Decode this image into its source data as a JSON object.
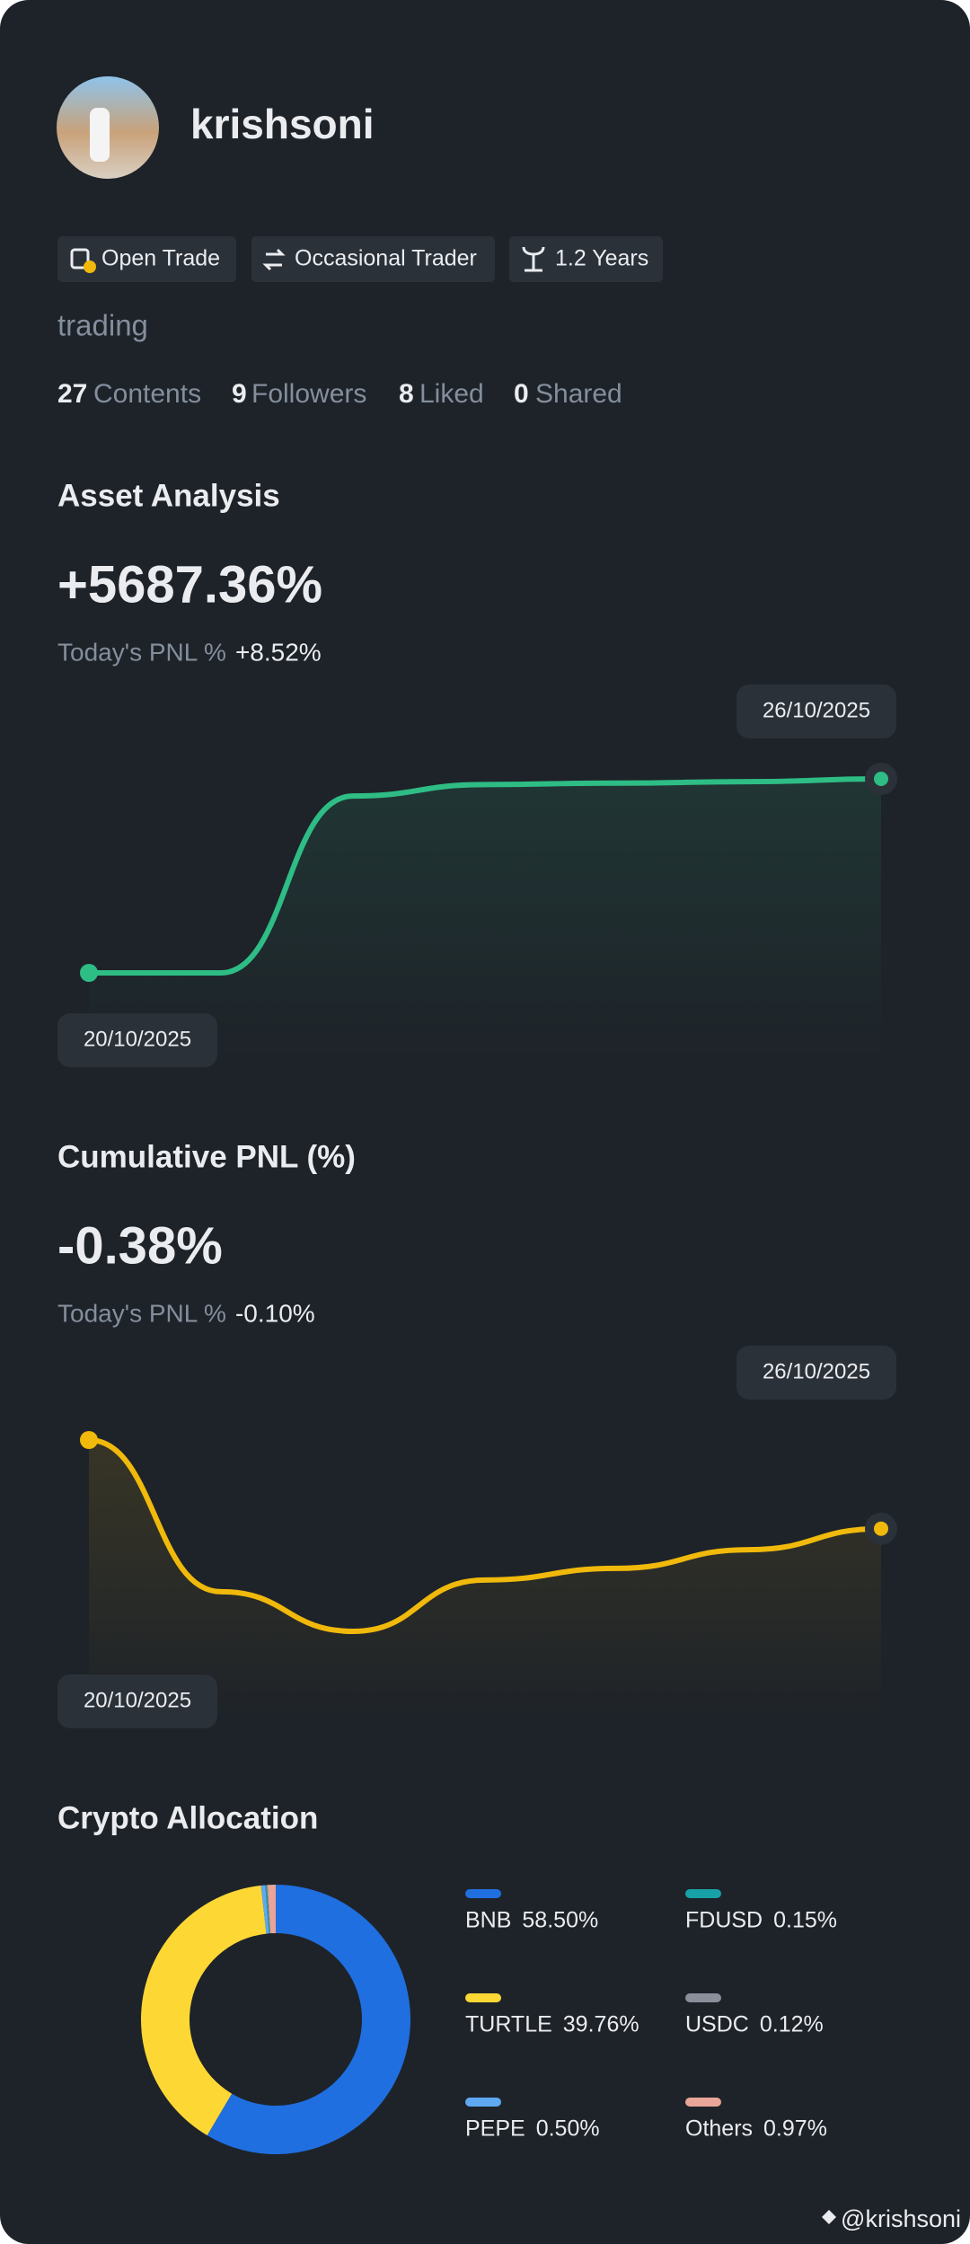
{
  "profile": {
    "username": "krishsoni",
    "tags": [
      "Open Trade",
      "Occasional Trader",
      "1.2 Years"
    ],
    "bio": "trading",
    "stats": [
      {
        "value": 27,
        "label": "Contents"
      },
      {
        "value": 9,
        "label": "Followers"
      },
      {
        "value": 8,
        "label": "Liked"
      },
      {
        "value": 0,
        "label": "Shared"
      }
    ]
  },
  "chart_data": [
    {
      "type": "line",
      "title": "Asset Analysis",
      "headline": "+5687.36%",
      "pnl_label": "Today's PNL %",
      "pnl_value": "+8.52%",
      "categories": [
        "20/10/2025",
        null,
        null,
        null,
        null,
        null,
        "26/10/2025"
      ],
      "series": [
        {
          "color": "#2ebd85",
          "values": [
            0,
            0,
            5185,
            5520,
            5562,
            5604,
            5687.36
          ]
        }
      ]
    },
    {
      "type": "line",
      "title": "Cumulative PNL (%)",
      "headline": "-0.38%",
      "pnl_label": "Today's PNL %",
      "pnl_value": "-0.10%",
      "categories": [
        "20/10/2025",
        null,
        null,
        null,
        null,
        null,
        "26/10/2025"
      ],
      "series": [
        {
          "color": "#f0b90b",
          "values": [
            0,
            -0.65,
            -0.82,
            -0.6,
            -0.55,
            -0.47,
            -0.38
          ]
        }
      ]
    },
    {
      "type": "pie",
      "title": "Crypto Allocation",
      "categories": [
        "BNB",
        "TURTLE",
        "PEPE",
        "FDUSD",
        "USDC",
        "Others"
      ],
      "values": [
        58.5,
        39.76,
        0.5,
        0.15,
        0.12,
        0.97
      ],
      "value_labels": [
        "58.50%",
        "39.76%",
        "0.50%",
        "0.15%",
        "0.12%",
        "0.97%"
      ],
      "colors": [
        "#1f6fe0",
        "#fdd835",
        "#5ea9f2",
        "#17a2a8",
        "#8a8f99",
        "#e8a598"
      ]
    }
  ],
  "footer": "@krishsoni"
}
